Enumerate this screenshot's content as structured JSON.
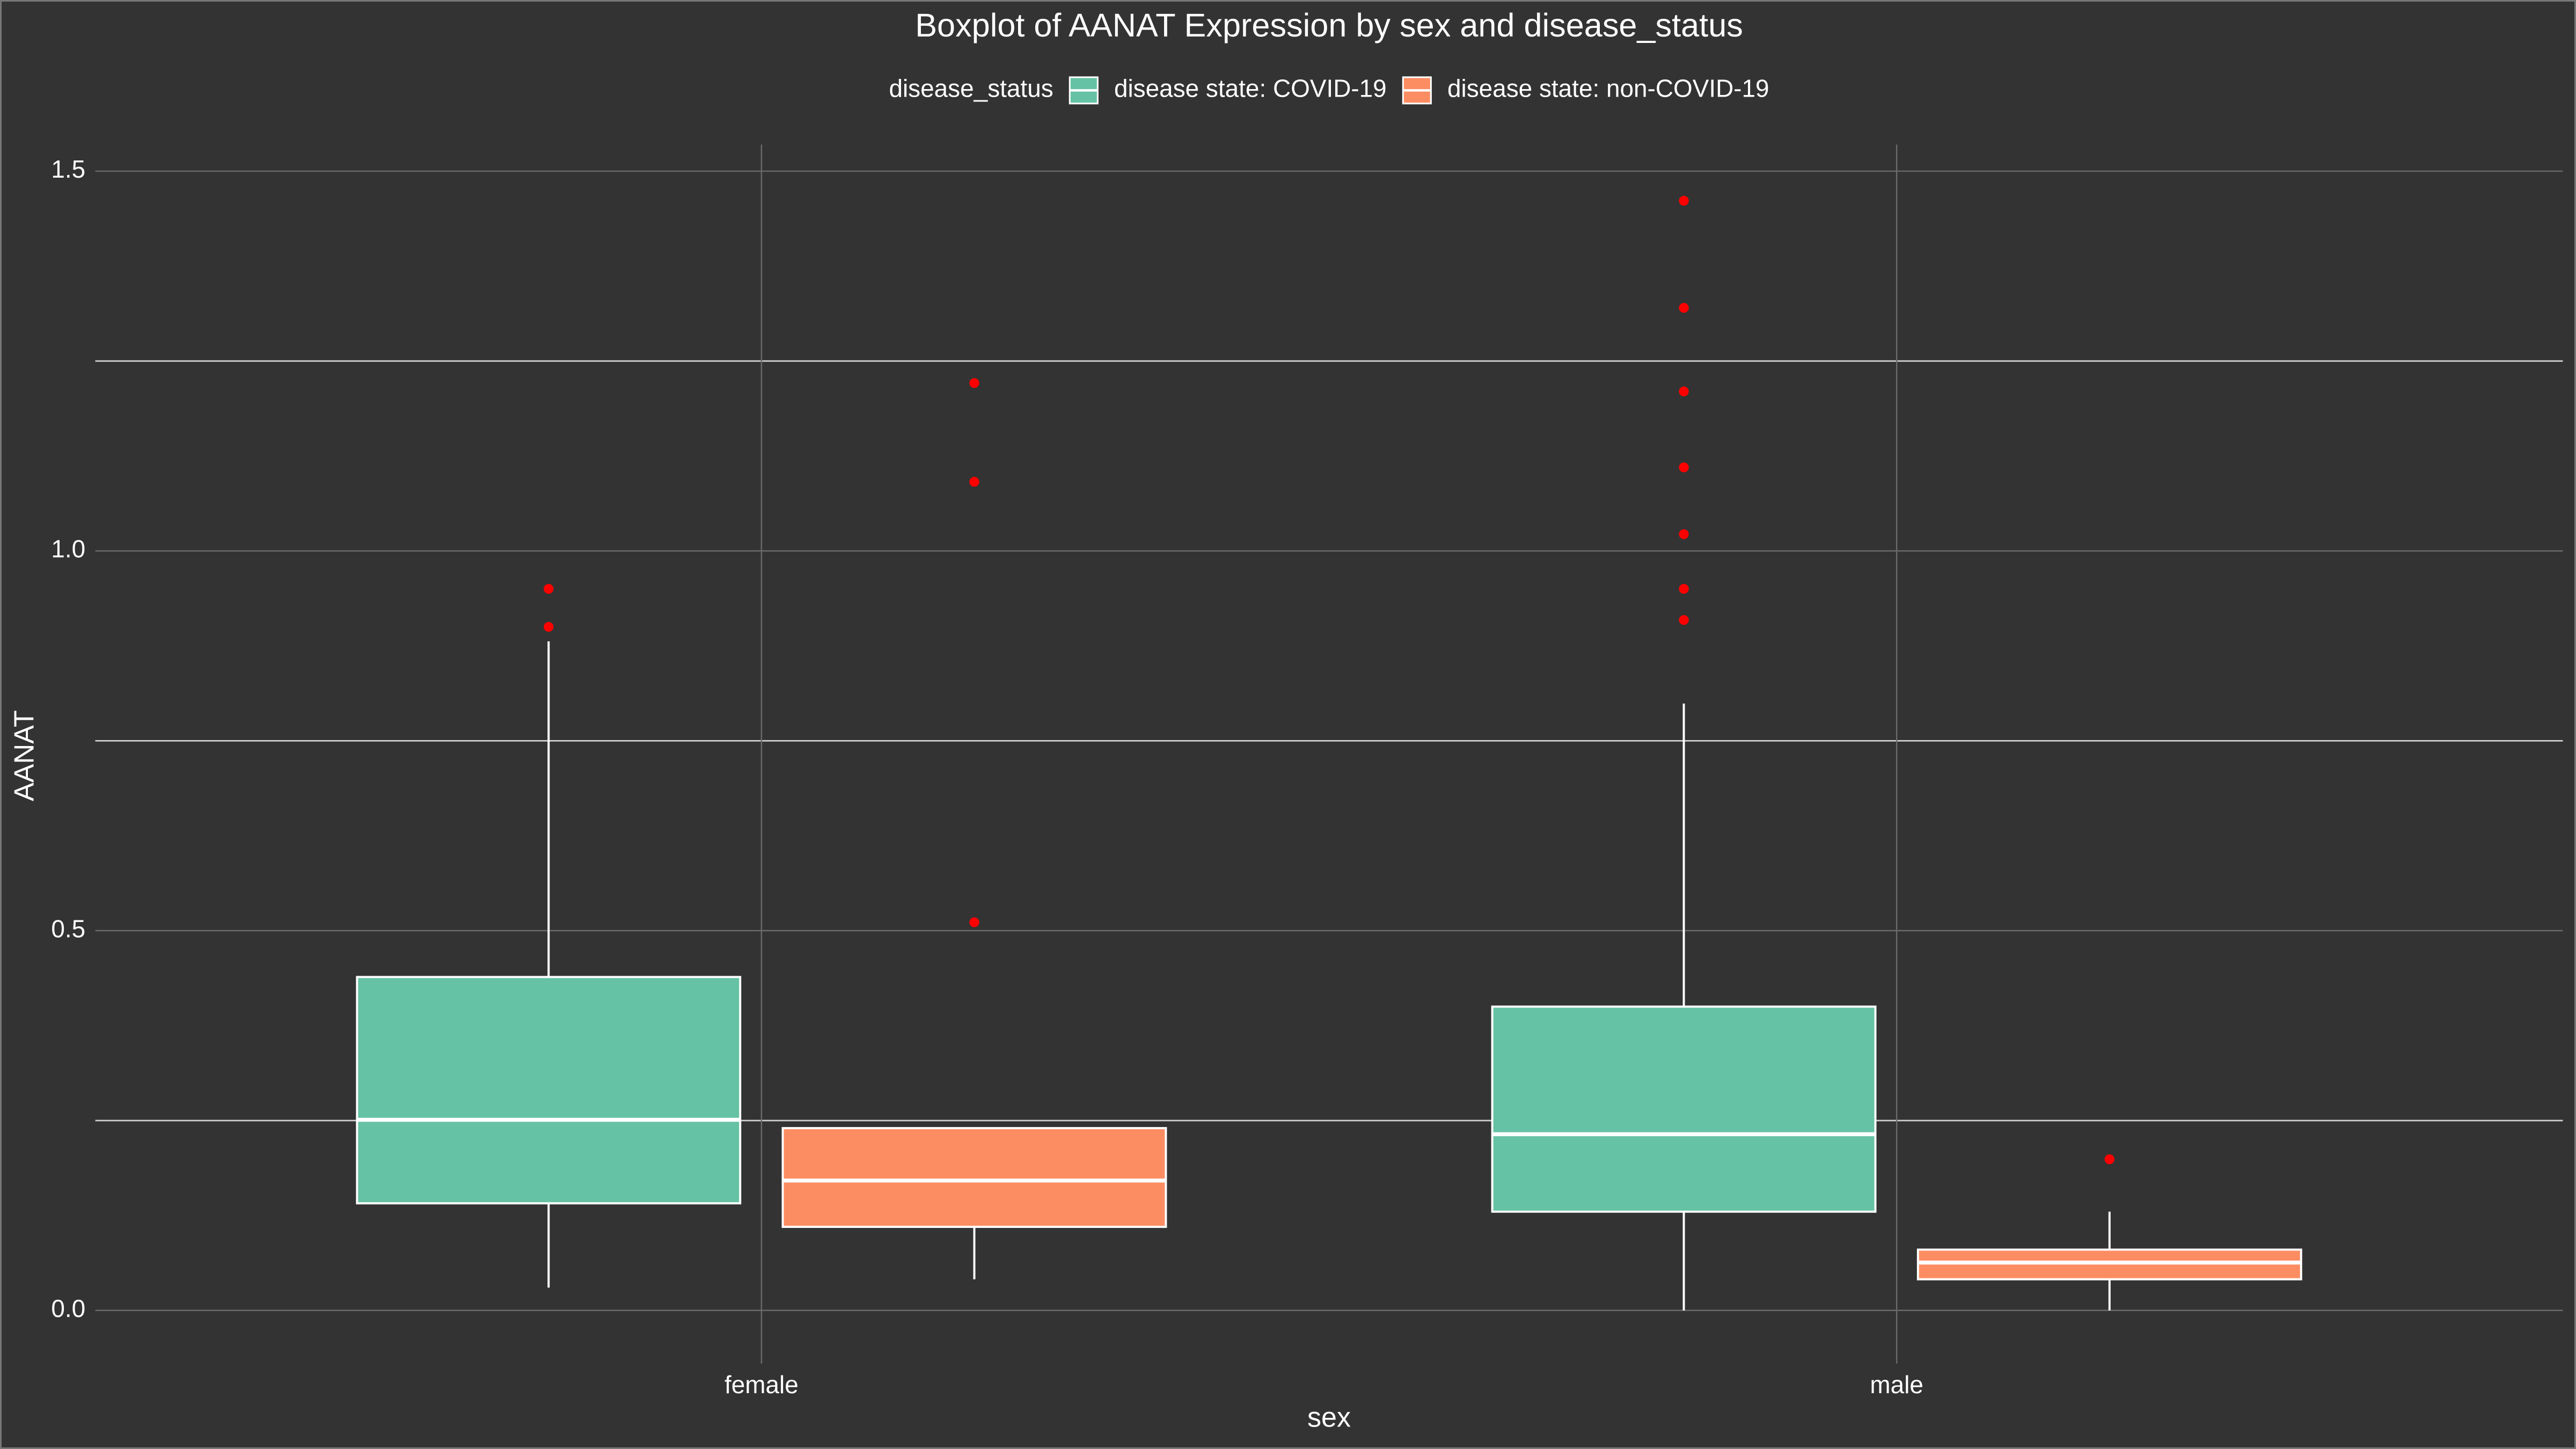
{
  "chart_data": {
    "type": "box",
    "title": "Boxplot of AANAT Expression by sex and disease_status",
    "x_label": "sex",
    "y_label": "AANAT",
    "legend_title": "disease_status",
    "legend_position": "top",
    "categories": [
      "female",
      "male"
    ],
    "series": [
      {
        "name": "disease state: COVID-19",
        "color": "#66c2a5",
        "boxes": [
          {
            "min": 0.03,
            "q1": 0.141,
            "median": 0.251,
            "q3": 0.439,
            "max": 0.881,
            "outliers": [
              0.95,
              0.9
            ]
          },
          {
            "min": 0.0,
            "q1": 0.13,
            "median": 0.232,
            "q3": 0.4,
            "max": 0.799,
            "outliers": [
              1.461,
              1.32,
              1.21,
              1.11,
              1.022,
              0.95,
              0.909
            ]
          }
        ]
      },
      {
        "name": "disease state: non-COVID-19",
        "color": "#fc8d62",
        "boxes": [
          {
            "min": 0.041,
            "q1": 0.11,
            "median": 0.171,
            "q3": 0.24,
            "max": 0.24,
            "outliers": [
              1.221,
              1.091,
              0.511
            ]
          },
          {
            "min": 0.0,
            "q1": 0.041,
            "median": 0.063,
            "q3": 0.08,
            "max": 0.13,
            "outliers": [
              0.199
            ]
          }
        ]
      }
    ],
    "outlier_color": "#ff0000",
    "ylim": [
      -0.07,
      1.535
    ],
    "yticks": [
      {
        "value": 0,
        "label": "0.0"
      },
      {
        "value": 0.5,
        "label": "0.5"
      },
      {
        "value": 1,
        "label": "1.0"
      },
      {
        "value": 1.5,
        "label": "1.5"
      }
    ],
    "minor_yticks": [
      0.25,
      0.75,
      1.25
    ],
    "grid": true
  }
}
